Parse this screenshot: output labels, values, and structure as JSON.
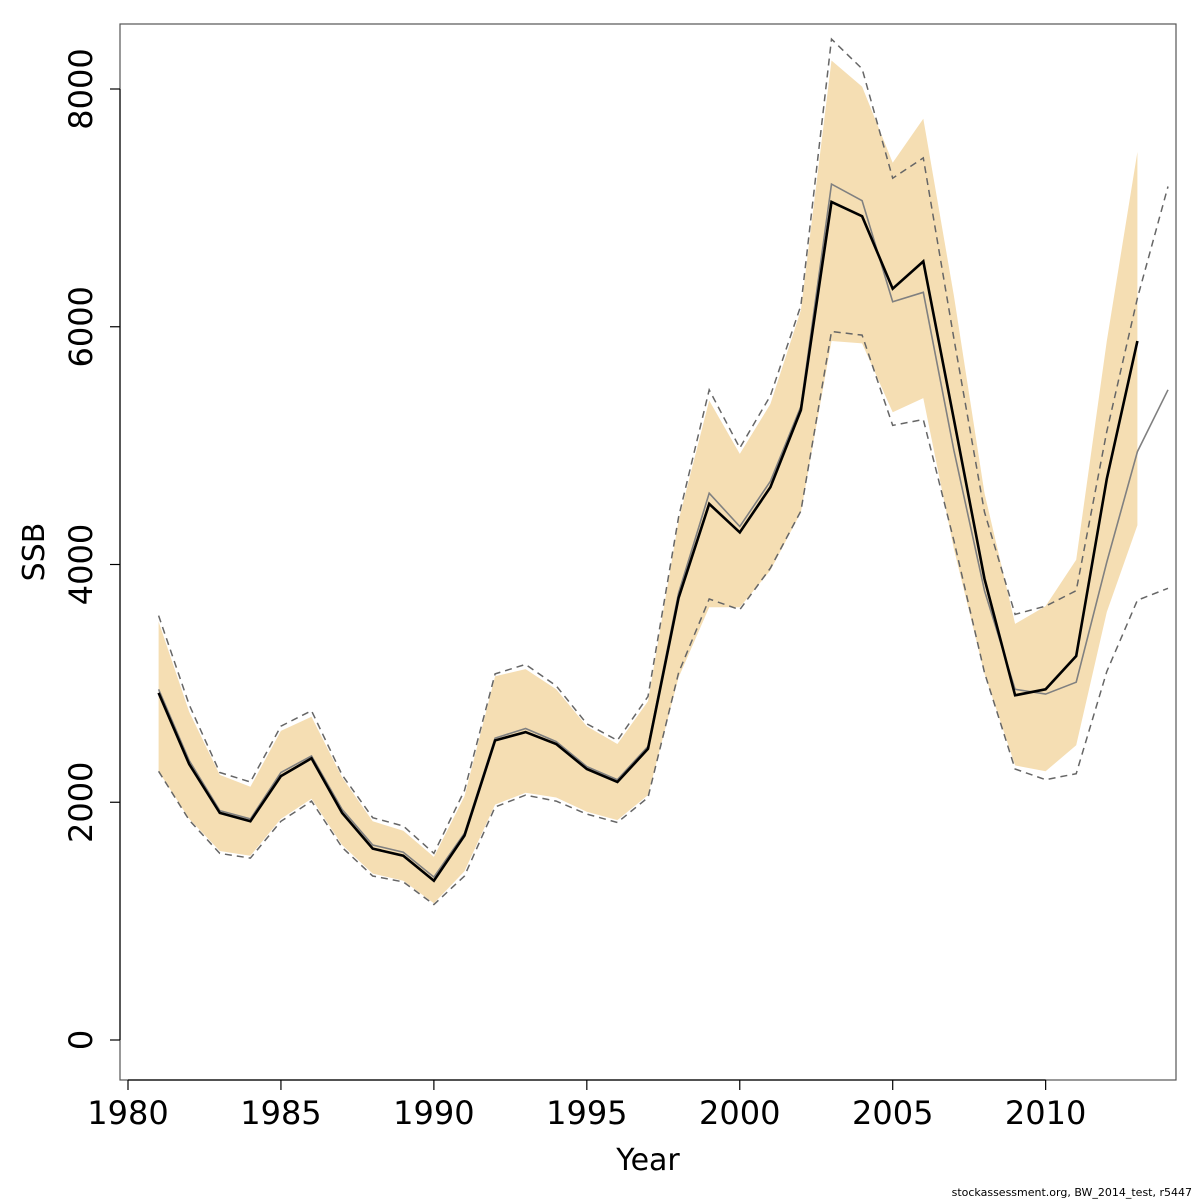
{
  "chart_data": {
    "type": "line",
    "xlabel": "Year",
    "ylabel": "SSB",
    "xlim": [
      1980,
      2014
    ],
    "ylim": [
      0,
      8500
    ],
    "x_ticks": [
      1980,
      1985,
      1990,
      1995,
      2000,
      2005,
      2010
    ],
    "y_ticks": [
      0,
      2000,
      4000,
      6000,
      8000
    ],
    "grid": false,
    "colors": {
      "band_fill": "#f5deb3",
      "current_line": "#000000",
      "previous_line": "#808080",
      "previous_ci": "#666666"
    },
    "series": [
      {
        "x": [
          1981,
          1982,
          1983,
          1984,
          1985,
          1986,
          1987,
          1988,
          1989,
          1990,
          1991,
          1992,
          1993,
          1994,
          1995,
          1996,
          1997,
          1998,
          1999,
          2000,
          2001,
          2002,
          2003,
          2004,
          2005,
          2006,
          2007,
          2008,
          2009,
          2010,
          2011,
          2012,
          2013
        ],
        "values": [
          2920,
          2320,
          1910,
          1840,
          2220,
          2370,
          1910,
          1610,
          1550,
          1340,
          1720,
          2520,
          2590,
          2490,
          2280,
          2170,
          2450,
          3720,
          4510,
          4270,
          4650,
          5300,
          7050,
          6930,
          6320,
          6550,
          5220,
          3880,
          2900,
          2950,
          3230,
          4720,
          5880
        ]
      },
      {
        "x": [
          1981,
          1982,
          1983,
          1984,
          1985,
          1986,
          1987,
          1988,
          1989,
          1990,
          1991,
          1992,
          1993,
          1994,
          1995,
          1996,
          1997,
          1998,
          1999,
          2000,
          2001,
          2002,
          2003,
          2004,
          2005,
          2006,
          2007,
          2008,
          2009,
          2010,
          2011,
          2012,
          2013,
          2014
        ],
        "values": [
          2950,
          2350,
          1930,
          1860,
          2250,
          2390,
          1940,
          1640,
          1580,
          1370,
          1740,
          2540,
          2620,
          2510,
          2300,
          2190,
          2470,
          3760,
          4600,
          4320,
          4700,
          5330,
          7200,
          7060,
          6210,
          6290,
          4960,
          3780,
          2950,
          2910,
          3010,
          4020,
          4950,
          5470
        ]
      },
      {
        "x": [
          1981,
          1982,
          1983,
          1984,
          1985,
          1986,
          1987,
          1988,
          1989,
          1990,
          1991,
          1992,
          1993,
          1994,
          1995,
          1996,
          1997,
          1998,
          1999,
          2000,
          2001,
          2002,
          2003,
          2004,
          2005,
          2006,
          2007,
          2008,
          2009,
          2010,
          2011,
          2012,
          2013,
          2014
        ],
        "values": [
          3570,
          2820,
          2250,
          2170,
          2640,
          2770,
          2230,
          1870,
          1800,
          1570,
          2100,
          3080,
          3160,
          2980,
          2660,
          2520,
          2890,
          4400,
          5470,
          4980,
          5420,
          6180,
          8420,
          8170,
          7250,
          7420,
          5900,
          4440,
          3580,
          3650,
          3780,
          5120,
          6240,
          7180
        ]
      },
      {
        "x": [
          1981,
          1982,
          1983,
          1984,
          1985,
          1986,
          1987,
          1988,
          1989,
          1990,
          1991,
          1992,
          1993,
          1994,
          1995,
          1996,
          1997,
          1998,
          1999,
          2000,
          2001,
          2002,
          2003,
          2004,
          2005,
          2006,
          2007,
          2008,
          2009,
          2010,
          2011,
          2012,
          2013,
          2014
        ],
        "values": [
          2260,
          1850,
          1570,
          1530,
          1840,
          2010,
          1620,
          1380,
          1330,
          1140,
          1380,
          1960,
          2060,
          2010,
          1900,
          1830,
          2040,
          3090,
          3710,
          3620,
          3970,
          4450,
          5960,
          5930,
          5170,
          5220,
          4200,
          3090,
          2280,
          2190,
          2240,
          3100,
          3700,
          3800
        ]
      },
      {
        "x": [
          1981,
          1982,
          1983,
          1984,
          1985,
          1986,
          1987,
          1988,
          1989,
          1990,
          1991,
          1992,
          1993,
          1994,
          1995,
          1996,
          1997,
          1998,
          1999,
          2000,
          2001,
          2002,
          2003,
          2004,
          2005,
          2006,
          2007,
          2008,
          2009,
          2010,
          2011,
          2012,
          2013
        ],
        "values": [
          2260,
          1860,
          1590,
          1550,
          1860,
          2030,
          1640,
          1400,
          1340,
          1150,
          1420,
          1980,
          2080,
          2040,
          1920,
          1850,
          2060,
          3050,
          3640,
          3640,
          3950,
          4440,
          5880,
          5860,
          5280,
          5400,
          4130,
          3080,
          2310,
          2260,
          2480,
          3600,
          4330
        ]
      },
      {
        "x": [
          1981,
          1982,
          1983,
          1984,
          1985,
          1986,
          1987,
          1988,
          1989,
          1990,
          1991,
          1992,
          1993,
          1994,
          1995,
          1996,
          1997,
          1998,
          1999,
          2000,
          2001,
          2002,
          2003,
          2004,
          2005,
          2006,
          2007,
          2008,
          2009,
          2010,
          2011,
          2012,
          2013
        ],
        "values": [
          3520,
          2760,
          2230,
          2130,
          2600,
          2720,
          2210,
          1840,
          1760,
          1540,
          2050,
          3060,
          3120,
          2950,
          2640,
          2490,
          2850,
          4370,
          5380,
          4930,
          5350,
          6140,
          8240,
          8020,
          7380,
          7750,
          6260,
          4600,
          3500,
          3650,
          4040,
          5880,
          7470
        ]
      }
    ]
  },
  "footer": {
    "source": "stockassessment.org, BW_2014_test, r5447"
  }
}
